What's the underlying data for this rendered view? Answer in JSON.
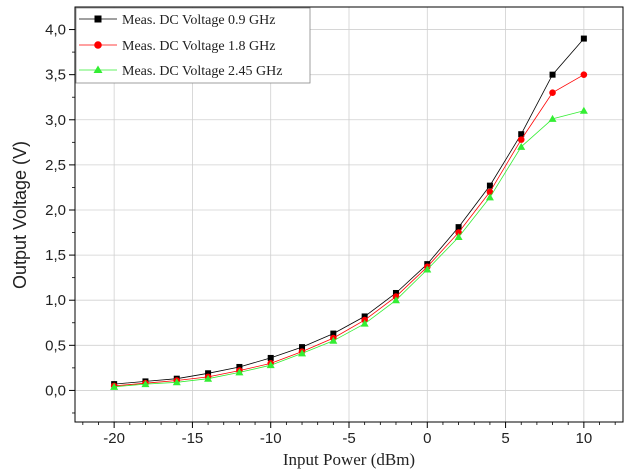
{
  "chart_data": {
    "type": "line",
    "xlabel": "Input Power (dBm)",
    "ylabel": "Output Voltage (V)",
    "xlim": [
      -22.5,
      12.5
    ],
    "ylim": [
      -0.35,
      4.25
    ],
    "xticks": [
      -20,
      -15,
      -10,
      -5,
      0,
      5,
      10
    ],
    "xtick_labels": [
      "-20",
      "-15",
      "-10",
      "-5",
      "0",
      "5",
      "10"
    ],
    "yticks": [
      0,
      0.5,
      1.0,
      1.5,
      2.0,
      2.5,
      3.0,
      3.5,
      4.0
    ],
    "ytick_labels": [
      "0,0",
      "0,5",
      "1,0",
      "1,5",
      "2,0",
      "2,5",
      "3,0",
      "3,5",
      "4,0"
    ],
    "grid": true,
    "legend_position": "top-left",
    "x": [
      -20,
      -18,
      -16,
      -14,
      -12,
      -10,
      -8,
      -6,
      -4,
      -2,
      0,
      2,
      4,
      6,
      8,
      10
    ],
    "series": [
      {
        "name": "Meas. DC Voltage 0.9 GHz",
        "marker": "square",
        "color": "#000000",
        "values": [
          0.07,
          0.1,
          0.13,
          0.19,
          0.26,
          0.36,
          0.48,
          0.63,
          0.82,
          1.08,
          1.4,
          1.81,
          2.27,
          2.84,
          3.5,
          3.9
        ]
      },
      {
        "name": "Meas. DC Voltage 1.8 GHz",
        "marker": "circle",
        "color": "#ff0000",
        "values": [
          0.05,
          0.08,
          0.11,
          0.15,
          0.22,
          0.3,
          0.43,
          0.58,
          0.78,
          1.04,
          1.37,
          1.75,
          2.2,
          2.78,
          3.3,
          3.5
        ]
      },
      {
        "name": "Meas. DC Voltage 2.45 GHz",
        "marker": "triangle",
        "color": "#33ee33",
        "values": [
          0.04,
          0.07,
          0.09,
          0.13,
          0.2,
          0.28,
          0.41,
          0.55,
          0.74,
          1.0,
          1.34,
          1.7,
          2.14,
          2.7,
          3.01,
          3.1
        ]
      }
    ]
  }
}
